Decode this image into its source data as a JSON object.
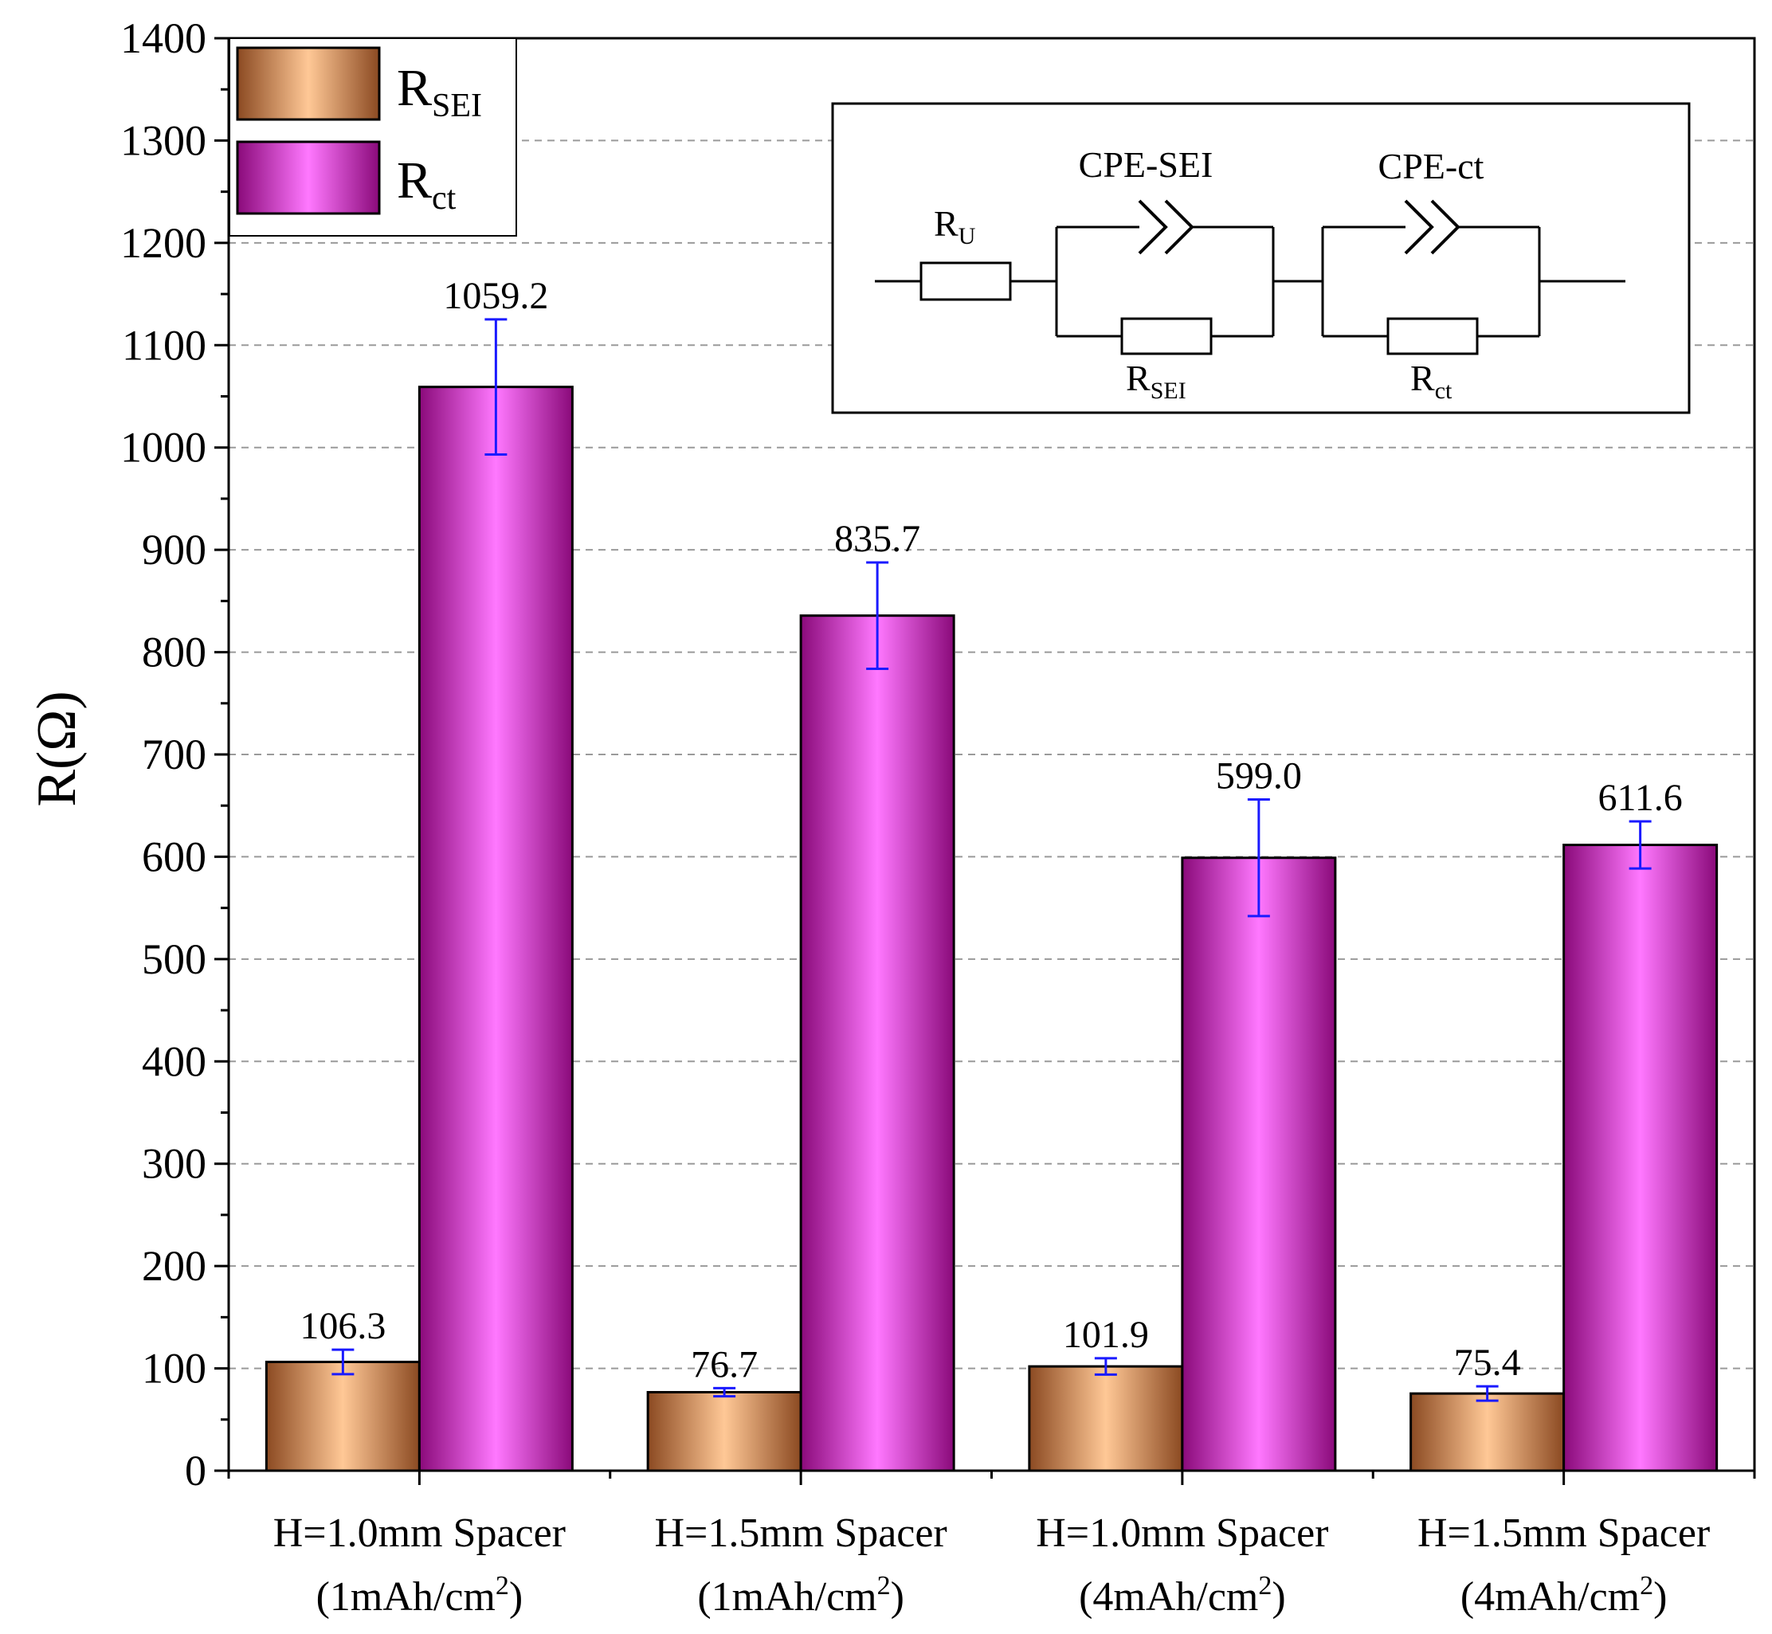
{
  "chart_data": {
    "type": "bar",
    "title": "",
    "ylabel": "R(Ω)",
    "ylabel_main": "R",
    "ylabel_unit": "(Ω)",
    "xlabel": "",
    "ylim": [
      0,
      1400
    ],
    "y_major_step": 100,
    "y_minor_step": 50,
    "yticks": [
      "0",
      "100",
      "200",
      "300",
      "400",
      "500",
      "600",
      "700",
      "800",
      "900",
      "1000",
      "1100",
      "1200",
      "1300",
      "1400"
    ],
    "grid": "horizontal dashed",
    "categories": [
      {
        "line1": "H=1.0mm Spacer",
        "line2_prefix": "(1mAh/cm",
        "line2_sup": "2",
        "line2_suffix": ")"
      },
      {
        "line1": "H=1.5mm Spacer",
        "line2_prefix": "(1mAh/cm",
        "line2_sup": "2",
        "line2_suffix": ")"
      },
      {
        "line1": "H=1.0mm Spacer",
        "line2_prefix": "(4mAh/cm",
        "line2_sup": "2",
        "line2_suffix": ")"
      },
      {
        "line1": "H=1.5mm Spacer",
        "line2_prefix": "(4mAh/cm",
        "line2_sup": "2",
        "line2_suffix": ")"
      }
    ],
    "series": [
      {
        "name": "R_SEI",
        "legend_main": "R",
        "legend_sub": "SEI",
        "values": [
          106.3,
          76.7,
          101.9,
          75.4
        ],
        "labels": [
          "106.3",
          "76.7",
          "101.9",
          "75.4"
        ],
        "errors": [
          12,
          4,
          8,
          7
        ],
        "color_dark": "#8b4a22",
        "color_light": "#ffc896"
      },
      {
        "name": "R_ct",
        "legend_main": "R",
        "legend_sub": "ct",
        "values": [
          1059.2,
          835.7,
          599.0,
          611.6
        ],
        "labels": [
          "1059.2",
          "835.7",
          "599.0",
          "611.6"
        ],
        "errors": [
          66,
          52,
          57,
          23
        ],
        "color_dark": "#8a0a7a",
        "color_light": "#ff78ff"
      }
    ],
    "error_bar_color": "#1a1aff",
    "legend_position": "top-left",
    "inset": {
      "type": "equivalent-circuit",
      "position": "top-right",
      "labels": {
        "ru_main": "R",
        "ru_sub": "U",
        "cpe_sei": "CPE-SEI",
        "cpe_ct": "CPE-ct",
        "rsei_main": "R",
        "rsei_sub": "SEI",
        "rct_main": "R",
        "rct_sub": "ct"
      }
    }
  }
}
